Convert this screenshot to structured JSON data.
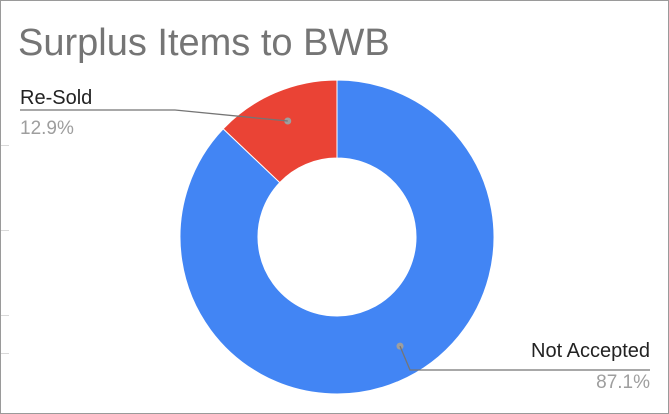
{
  "chart_data": {
    "type": "pie",
    "title": "Surplus Items to BWB",
    "donut": true,
    "slices": [
      {
        "name": "Not Accepted",
        "value": 87.1,
        "label": "87.1%",
        "color": "#4285f4"
      },
      {
        "name": "Re-Sold",
        "value": 12.9,
        "label": "12.9%",
        "color": "#ea4335"
      }
    ],
    "legend": "none"
  }
}
